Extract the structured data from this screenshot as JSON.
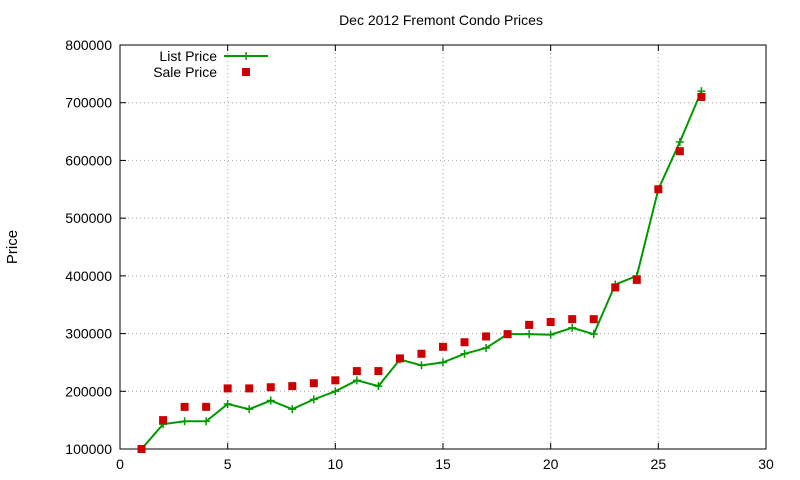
{
  "chart_data": {
    "type": "line",
    "title": "Dec 2012 Fremont Condo Prices",
    "xlabel": "",
    "ylabel": "Price",
    "xlim": [
      0,
      30
    ],
    "ylim": [
      100000,
      800000
    ],
    "x_ticks": [
      0,
      5,
      10,
      15,
      20,
      25,
      30
    ],
    "y_ticks": [
      100000,
      200000,
      300000,
      400000,
      500000,
      600000,
      700000,
      800000
    ],
    "grid": true,
    "legend_position": "top-left",
    "series": [
      {
        "name": "List Price",
        "style": "linespoints",
        "marker": "plus",
        "color": "#009900",
        "x": [
          1,
          2,
          3,
          4,
          5,
          6,
          7,
          8,
          9,
          10,
          11,
          12,
          13,
          14,
          15,
          16,
          17,
          18,
          19,
          20,
          21,
          22,
          23,
          24,
          25,
          26,
          27
        ],
        "y": [
          100000,
          143000,
          148000,
          148000,
          178000,
          169000,
          184000,
          169000,
          186000,
          200000,
          219000,
          209000,
          255000,
          245000,
          250000,
          265000,
          275000,
          299000,
          299000,
          298000,
          310000,
          299000,
          385000,
          400000,
          550000,
          632000,
          720000
        ]
      },
      {
        "name": "Sale Price",
        "style": "points",
        "marker": "square",
        "color": "#cc0000",
        "x": [
          1,
          2,
          3,
          4,
          5,
          6,
          7,
          8,
          9,
          10,
          11,
          12,
          13,
          14,
          15,
          16,
          17,
          18,
          19,
          20,
          21,
          22,
          23,
          24,
          25,
          26,
          27
        ],
        "y": [
          100000,
          150000,
          173000,
          173000,
          205000,
          205000,
          207000,
          209000,
          214000,
          219000,
          235000,
          235000,
          257000,
          265000,
          277000,
          285000,
          295000,
          299000,
          315000,
          320000,
          325000,
          325000,
          380000,
          393000,
          550000,
          616000,
          710000
        ]
      }
    ]
  }
}
